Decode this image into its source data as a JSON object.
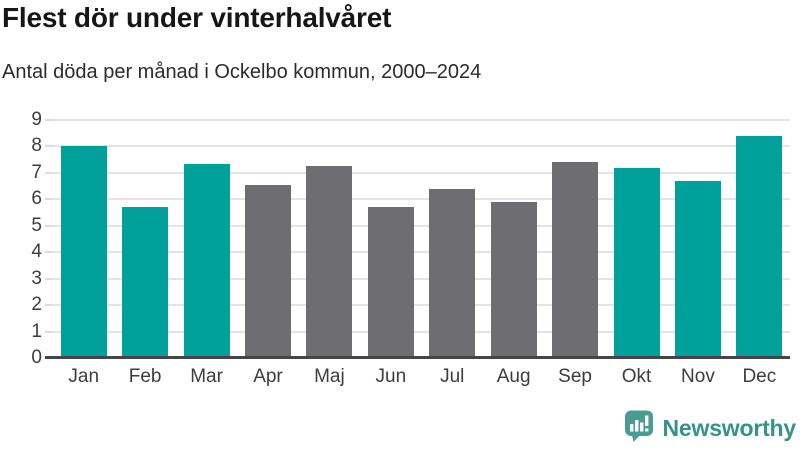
{
  "header": {
    "title": "Flest dör under vinterhalvåret",
    "subtitle": "Antal döda per månad i Ockelbo kommun, 2000–2024"
  },
  "chart_data": {
    "type": "bar",
    "title": "Flest dör under vinterhalvåret",
    "subtitle": "Antal döda per månad i Ockelbo kommun, 2000–2024",
    "categories": [
      "Jan",
      "Feb",
      "Mar",
      "Apr",
      "Maj",
      "Jun",
      "Jul",
      "Aug",
      "Sep",
      "Okt",
      "Nov",
      "Dec"
    ],
    "values": [
      8.0,
      5.7,
      7.35,
      6.55,
      7.25,
      5.7,
      6.4,
      5.9,
      7.4,
      7.2,
      6.7,
      8.4
    ],
    "bar_colors": [
      "teal",
      "teal",
      "teal",
      "gray",
      "gray",
      "gray",
      "gray",
      "gray",
      "gray",
      "teal",
      "teal",
      "teal"
    ],
    "palette": {
      "teal": "#00a09b",
      "gray": "#6d6d72"
    },
    "xlabel": "",
    "ylabel": "",
    "ylim": [
      0,
      9
    ],
    "yticks": [
      0,
      1,
      2,
      3,
      4,
      5,
      6,
      7,
      8,
      9
    ],
    "grid": true,
    "legend": "none"
  },
  "footer": {
    "brand": "Newsworthy",
    "logo_icon": "bar-chart-speech-bubble-icon",
    "brand_color": "#37928a",
    "icon_color": "#4a9c93"
  }
}
